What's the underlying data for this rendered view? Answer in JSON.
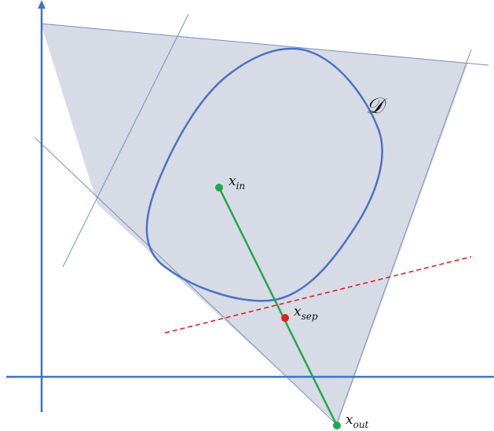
{
  "labels": {
    "domain": "𝒟",
    "x_in": {
      "base": "x",
      "sub": "in"
    },
    "x_sep": {
      "base": "x",
      "sub": "sep"
    },
    "x_out": {
      "base": "x",
      "sub": "out"
    }
  },
  "colors": {
    "axis": "#4472c4",
    "polygon_fill": "#d6dbe6",
    "polygon_edge": "#7a8fb8",
    "domain_curve": "#4a72c4",
    "segment": "#22a84a",
    "separator": "#e02020",
    "point_in": "#22a84a",
    "point_sep": "#e02020",
    "point_out": "#22a84a"
  }
}
